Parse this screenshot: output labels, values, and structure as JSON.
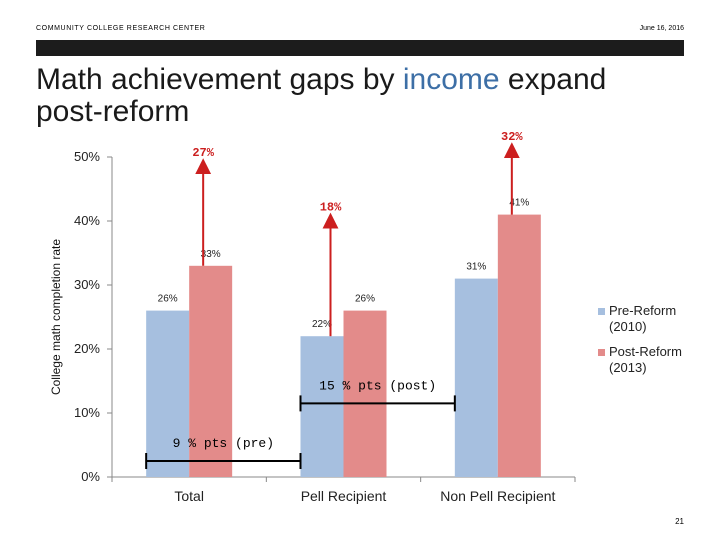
{
  "header": {
    "org": "COMMUNITY COLLEGE RESEARCH CENTER",
    "date": "June 16, 2016"
  },
  "title": {
    "pre": "Math achievement gaps by ",
    "highlight": "income",
    "post": " expand post-reform"
  },
  "slide_number": "21",
  "colors": {
    "pre": "#a6bfdf",
    "post": "#e38b8a",
    "arrow": "#cc1f1f",
    "accent": "#3d6fa6",
    "axis": "#888888"
  },
  "chart_data": {
    "type": "bar",
    "title": "Math achievement gaps by income expand post-reform",
    "xlabel": "",
    "ylabel": "College math completion rate",
    "ylim": [
      0,
      50
    ],
    "yticks": [
      "0%",
      "10%",
      "20%",
      "30%",
      "40%",
      "50%"
    ],
    "yticks_values": [
      0,
      10,
      20,
      30,
      40,
      50
    ],
    "categories": [
      "Total",
      "Pell Recipient",
      "Non Pell Recipient"
    ],
    "series": [
      {
        "name": "Pre-Reform (2010)",
        "values": [
          26,
          22,
          31
        ],
        "labels": [
          "26%",
          "22%",
          "31%"
        ]
      },
      {
        "name": "Post-Reform (2013)",
        "values": [
          33,
          26,
          41
        ],
        "labels": [
          "33%",
          "26%",
          "41%"
        ]
      }
    ],
    "legend": [
      {
        "line1": "Pre-Reform",
        "line2": "(2010)"
      },
      {
        "line1": "Post-Reform",
        "line2": "(2013)"
      }
    ],
    "annotations": {
      "growth": [
        {
          "category": 0,
          "text": "27%",
          "top_value": 49.5
        },
        {
          "category": 1,
          "text": "18%",
          "top_value": 41
        },
        {
          "category": 2,
          "text": "32%",
          "top_value": 52
        }
      ],
      "gaps": [
        {
          "text": "15 % pts (post)",
          "from": 1,
          "to": 2,
          "value": 11.5
        },
        {
          "text": "9 % pts (pre)",
          "from": 0,
          "to": 1,
          "value": 2.5
        }
      ]
    }
  }
}
